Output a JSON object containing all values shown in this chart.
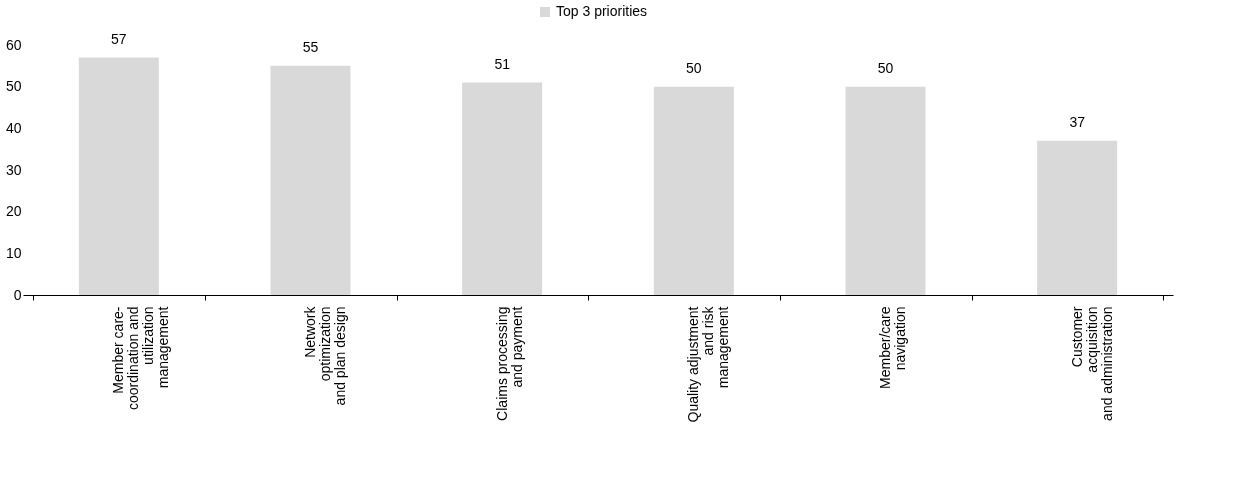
{
  "chart_data": {
    "type": "bar",
    "categories": [
      "Member care-\ncoordination and\nutilization\nmanagement",
      "Network\noptimization\nand plan design",
      "Claims processing\nand payment",
      "Quality adjustment\nand risk\nmanagement",
      "Member/care\nnavigation",
      "Customer\nacquisition\nand administration"
    ],
    "series": [
      {
        "name": "Top 3 priorities",
        "color": "#d9d9d9",
        "values": [
          57,
          55,
          51,
          50,
          50,
          37
        ]
      }
    ],
    "ylim": [
      0,
      60
    ],
    "yticks": [
      0,
      10,
      20,
      30,
      40,
      50,
      60
    ],
    "grid": false,
    "legend": "top",
    "data_labels": true
  }
}
